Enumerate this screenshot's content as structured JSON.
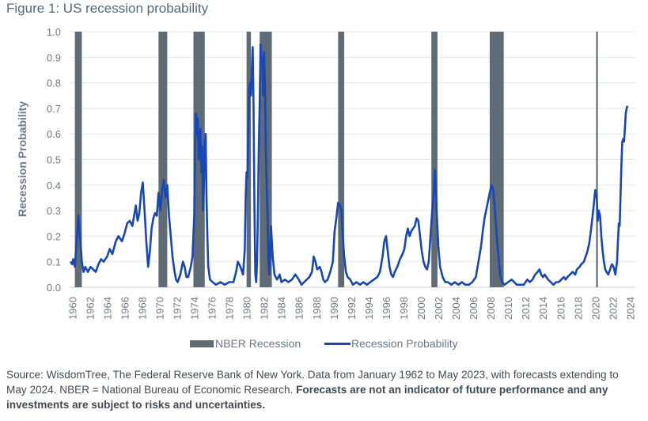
{
  "figure_title": "Figure 1: US recession probability",
  "source": {
    "text": "Source: WisdomTree, The Federal Reserve Bank of New York. Data from January 1962 to May 2023, with forecasts extending to May 2024. NBER = National Bureau of Economic Research.",
    "bold": "Forecasts are not an indicator of future performance and any investments are subject to risks and uncertainties."
  },
  "colors": {
    "recession": "#5f6b75",
    "probability": "#1747b5",
    "grid": "#e3e7ea",
    "axis_text": "#6d7a86"
  },
  "chart_data": {
    "type": "line",
    "title": "",
    "xlabel": "",
    "ylabel": "Recession Probability",
    "xlim": [
      1959.7,
      2024.6
    ],
    "ylim": [
      0,
      1
    ],
    "yticks": [
      "0.0",
      "0.1",
      "0.2",
      "0.3",
      "0.4",
      "0.5",
      "0.6",
      "0.7",
      "0.8",
      "0.9",
      "1.0"
    ],
    "xticks": [
      "1960",
      "1962",
      "1964",
      "1966",
      "1968",
      "1970",
      "1972",
      "1974",
      "1976",
      "1978",
      "1980",
      "1982",
      "1984",
      "1986",
      "1988",
      "1990",
      "1992",
      "1994",
      "1996",
      "1998",
      "2000",
      "2002",
      "2004",
      "2006",
      "2008",
      "2010",
      "2012",
      "2014",
      "2016",
      "2018",
      "2020",
      "2022",
      "2024"
    ],
    "legend": [
      "NBER Recession",
      "Recession Probability"
    ],
    "legend_position": "bottom",
    "grid": true,
    "recessions": [
      {
        "start": 1960.3,
        "end": 1961.1
      },
      {
        "start": 1969.9,
        "end": 1970.9
      },
      {
        "start": 1973.9,
        "end": 1975.2
      },
      {
        "start": 1980.0,
        "end": 1980.5
      },
      {
        "start": 1981.5,
        "end": 1982.9
      },
      {
        "start": 1990.5,
        "end": 1991.2
      },
      {
        "start": 2001.2,
        "end": 2001.9
      },
      {
        "start": 2007.9,
        "end": 2009.5
      },
      {
        "start": 2020.1,
        "end": 2020.3
      }
    ],
    "series": [
      {
        "name": "Recession Probability",
        "points": [
          [
            1959.8,
            0.1
          ],
          [
            1960.0,
            0.09
          ],
          [
            1960.1,
            0.11
          ],
          [
            1960.3,
            0.08
          ],
          [
            1960.5,
            0.18
          ],
          [
            1960.7,
            0.28
          ],
          [
            1960.9,
            0.2
          ],
          [
            1961.1,
            0.1
          ],
          [
            1961.3,
            0.06
          ],
          [
            1961.5,
            0.08
          ],
          [
            1961.8,
            0.06
          ],
          [
            1962.1,
            0.08
          ],
          [
            1962.4,
            0.07
          ],
          [
            1962.7,
            0.06
          ],
          [
            1963.0,
            0.09
          ],
          [
            1963.3,
            0.11
          ],
          [
            1963.6,
            0.1
          ],
          [
            1964.0,
            0.12
          ],
          [
            1964.3,
            0.15
          ],
          [
            1964.6,
            0.13
          ],
          [
            1965.0,
            0.18
          ],
          [
            1965.3,
            0.2
          ],
          [
            1965.7,
            0.18
          ],
          [
            1966.0,
            0.21
          ],
          [
            1966.3,
            0.25
          ],
          [
            1966.6,
            0.26
          ],
          [
            1966.9,
            0.24
          ],
          [
            1967.1,
            0.28
          ],
          [
            1967.3,
            0.32
          ],
          [
            1967.5,
            0.26
          ],
          [
            1967.7,
            0.29
          ],
          [
            1967.9,
            0.37
          ],
          [
            1968.1,
            0.41
          ],
          [
            1968.3,
            0.3
          ],
          [
            1968.5,
            0.18
          ],
          [
            1968.7,
            0.08
          ],
          [
            1968.9,
            0.14
          ],
          [
            1969.1,
            0.23
          ],
          [
            1969.3,
            0.27
          ],
          [
            1969.5,
            0.29
          ],
          [
            1969.7,
            0.28
          ],
          [
            1969.9,
            0.37
          ],
          [
            1970.1,
            0.3
          ],
          [
            1970.3,
            0.38
          ],
          [
            1970.5,
            0.42
          ],
          [
            1970.7,
            0.35
          ],
          [
            1970.9,
            0.4
          ],
          [
            1971.1,
            0.28
          ],
          [
            1971.3,
            0.2
          ],
          [
            1971.5,
            0.12
          ],
          [
            1971.7,
            0.07
          ],
          [
            1971.9,
            0.03
          ],
          [
            1972.1,
            0.02
          ],
          [
            1972.4,
            0.05
          ],
          [
            1972.7,
            0.1
          ],
          [
            1972.9,
            0.08
          ],
          [
            1973.1,
            0.04
          ],
          [
            1973.3,
            0.04
          ],
          [
            1973.6,
            0.08
          ],
          [
            1973.8,
            0.12
          ],
          [
            1974.0,
            0.28
          ],
          [
            1974.1,
            0.55
          ],
          [
            1974.2,
            0.68
          ],
          [
            1974.3,
            0.6
          ],
          [
            1974.4,
            0.66
          ],
          [
            1974.5,
            0.5
          ],
          [
            1974.6,
            0.58
          ],
          [
            1974.7,
            0.62
          ],
          [
            1974.8,
            0.45
          ],
          [
            1974.9,
            0.55
          ],
          [
            1975.0,
            0.3
          ],
          [
            1975.1,
            0.4
          ],
          [
            1975.2,
            0.56
          ],
          [
            1975.3,
            0.6
          ],
          [
            1975.4,
            0.35
          ],
          [
            1975.5,
            0.2
          ],
          [
            1975.6,
            0.08
          ],
          [
            1975.8,
            0.03
          ],
          [
            1976.1,
            0.02
          ],
          [
            1976.5,
            0.01
          ],
          [
            1977.0,
            0.02
          ],
          [
            1977.5,
            0.01
          ],
          [
            1978.0,
            0.02
          ],
          [
            1978.5,
            0.02
          ],
          [
            1978.8,
            0.06
          ],
          [
            1979.0,
            0.1
          ],
          [
            1979.3,
            0.08
          ],
          [
            1979.6,
            0.05
          ],
          [
            1979.8,
            0.15
          ],
          [
            1979.9,
            0.35
          ],
          [
            1980.0,
            0.45
          ],
          [
            1980.1,
            0.43
          ],
          [
            1980.2,
            0.6
          ],
          [
            1980.3,
            0.78
          ],
          [
            1980.4,
            0.8
          ],
          [
            1980.5,
            0.75
          ],
          [
            1980.6,
            0.85
          ],
          [
            1980.7,
            0.94
          ],
          [
            1980.8,
            0.7
          ],
          [
            1980.9,
            0.3
          ],
          [
            1981.0,
            0.05
          ],
          [
            1981.1,
            0.02
          ],
          [
            1981.2,
            0.1
          ],
          [
            1981.3,
            0.3
          ],
          [
            1981.4,
            0.55
          ],
          [
            1981.5,
            0.72
          ],
          [
            1981.6,
            0.95
          ],
          [
            1981.7,
            0.88
          ],
          [
            1981.8,
            0.9
          ],
          [
            1981.9,
            0.75
          ],
          [
            1982.0,
            0.92
          ],
          [
            1982.1,
            0.8
          ],
          [
            1982.2,
            0.55
          ],
          [
            1982.3,
            0.4
          ],
          [
            1982.4,
            0.28
          ],
          [
            1982.5,
            0.1
          ],
          [
            1982.6,
            0.05
          ],
          [
            1982.8,
            0.24
          ],
          [
            1983.0,
            0.12
          ],
          [
            1983.2,
            0.05
          ],
          [
            1983.5,
            0.03
          ],
          [
            1983.8,
            0.05
          ],
          [
            1984.0,
            0.02
          ],
          [
            1984.4,
            0.03
          ],
          [
            1984.8,
            0.02
          ],
          [
            1985.2,
            0.03
          ],
          [
            1985.6,
            0.05
          ],
          [
            1986.0,
            0.03
          ],
          [
            1986.3,
            0.01
          ],
          [
            1986.6,
            0.02
          ],
          [
            1986.9,
            0.03
          ],
          [
            1987.2,
            0.04
          ],
          [
            1987.5,
            0.06
          ],
          [
            1987.7,
            0.12
          ],
          [
            1987.9,
            0.1
          ],
          [
            1988.1,
            0.07
          ],
          [
            1988.4,
            0.08
          ],
          [
            1988.6,
            0.06
          ],
          [
            1988.8,
            0.03
          ],
          [
            1989.0,
            0.02
          ],
          [
            1989.3,
            0.03
          ],
          [
            1989.6,
            0.06
          ],
          [
            1989.9,
            0.1
          ],
          [
            1990.1,
            0.22
          ],
          [
            1990.3,
            0.27
          ],
          [
            1990.5,
            0.33
          ],
          [
            1990.7,
            0.32
          ],
          [
            1990.9,
            0.3
          ],
          [
            1991.0,
            0.22
          ],
          [
            1991.2,
            0.12
          ],
          [
            1991.4,
            0.06
          ],
          [
            1991.6,
            0.04
          ],
          [
            1991.9,
            0.03
          ],
          [
            1992.2,
            0.01
          ],
          [
            1992.6,
            0.02
          ],
          [
            1993.0,
            0.01
          ],
          [
            1993.4,
            0.02
          ],
          [
            1993.8,
            0.01
          ],
          [
            1994.2,
            0.02
          ],
          [
            1994.6,
            0.03
          ],
          [
            1995.0,
            0.04
          ],
          [
            1995.3,
            0.06
          ],
          [
            1995.6,
            0.12
          ],
          [
            1995.8,
            0.18
          ],
          [
            1996.0,
            0.2
          ],
          [
            1996.2,
            0.14
          ],
          [
            1996.4,
            0.08
          ],
          [
            1996.6,
            0.05
          ],
          [
            1996.8,
            0.04
          ],
          [
            1997.0,
            0.06
          ],
          [
            1997.3,
            0.08
          ],
          [
            1997.6,
            0.11
          ],
          [
            1997.9,
            0.13
          ],
          [
            1998.1,
            0.15
          ],
          [
            1998.3,
            0.2
          ],
          [
            1998.5,
            0.23
          ],
          [
            1998.7,
            0.2
          ],
          [
            1998.9,
            0.22
          ],
          [
            1999.1,
            0.23
          ],
          [
            1999.3,
            0.24
          ],
          [
            1999.5,
            0.27
          ],
          [
            1999.7,
            0.26
          ],
          [
            1999.9,
            0.2
          ],
          [
            2000.1,
            0.14
          ],
          [
            2000.3,
            0.1
          ],
          [
            2000.5,
            0.08
          ],
          [
            2000.7,
            0.07
          ],
          [
            2000.9,
            0.1
          ],
          [
            2001.1,
            0.2
          ],
          [
            2001.3,
            0.3
          ],
          [
            2001.5,
            0.38
          ],
          [
            2001.6,
            0.46
          ],
          [
            2001.7,
            0.4
          ],
          [
            2001.8,
            0.3
          ],
          [
            2002.0,
            0.16
          ],
          [
            2002.2,
            0.08
          ],
          [
            2002.5,
            0.04
          ],
          [
            2002.8,
            0.02
          ],
          [
            2003.1,
            0.02
          ],
          [
            2003.5,
            0.01
          ],
          [
            2003.9,
            0.02
          ],
          [
            2004.3,
            0.01
          ],
          [
            2004.7,
            0.02
          ],
          [
            2005.1,
            0.01
          ],
          [
            2005.5,
            0.01
          ],
          [
            2005.9,
            0.02
          ],
          [
            2006.3,
            0.04
          ],
          [
            2006.6,
            0.1
          ],
          [
            2006.9,
            0.16
          ],
          [
            2007.1,
            0.22
          ],
          [
            2007.3,
            0.27
          ],
          [
            2007.6,
            0.32
          ],
          [
            2007.9,
            0.37
          ],
          [
            2008.1,
            0.4
          ],
          [
            2008.3,
            0.38
          ],
          [
            2008.5,
            0.3
          ],
          [
            2008.7,
            0.2
          ],
          [
            2008.9,
            0.12
          ],
          [
            2009.1,
            0.05
          ],
          [
            2009.3,
            0.02
          ],
          [
            2009.6,
            0.01
          ],
          [
            2010.0,
            0.02
          ],
          [
            2010.4,
            0.03
          ],
          [
            2010.7,
            0.02
          ],
          [
            2011.0,
            0.01
          ],
          [
            2011.4,
            0.01
          ],
          [
            2011.8,
            0.01
          ],
          [
            2012.2,
            0.03
          ],
          [
            2012.5,
            0.02
          ],
          [
            2012.8,
            0.03
          ],
          [
            2013.1,
            0.05
          ],
          [
            2013.4,
            0.06
          ],
          [
            2013.6,
            0.07
          ],
          [
            2013.8,
            0.05
          ],
          [
            2014.0,
            0.04
          ],
          [
            2014.2,
            0.05
          ],
          [
            2014.4,
            0.04
          ],
          [
            2014.6,
            0.03
          ],
          [
            2014.9,
            0.02
          ],
          [
            2015.2,
            0.01
          ],
          [
            2015.5,
            0.02
          ],
          [
            2015.8,
            0.02
          ],
          [
            2016.1,
            0.03
          ],
          [
            2016.4,
            0.04
          ],
          [
            2016.6,
            0.03
          ],
          [
            2016.8,
            0.04
          ],
          [
            2017.1,
            0.05
          ],
          [
            2017.4,
            0.06
          ],
          [
            2017.7,
            0.05
          ],
          [
            2017.9,
            0.07
          ],
          [
            2018.2,
            0.08
          ],
          [
            2018.4,
            0.09
          ],
          [
            2018.7,
            0.1
          ],
          [
            2018.9,
            0.12
          ],
          [
            2019.1,
            0.14
          ],
          [
            2019.3,
            0.17
          ],
          [
            2019.5,
            0.22
          ],
          [
            2019.7,
            0.28
          ],
          [
            2019.85,
            0.33
          ],
          [
            2020.0,
            0.38
          ],
          [
            2020.15,
            0.36
          ],
          [
            2020.3,
            0.26
          ],
          [
            2020.4,
            0.3
          ],
          [
            2020.55,
            0.28
          ],
          [
            2020.7,
            0.2
          ],
          [
            2020.85,
            0.14
          ],
          [
            2021.0,
            0.1
          ],
          [
            2021.15,
            0.07
          ],
          [
            2021.3,
            0.06
          ],
          [
            2021.5,
            0.05
          ],
          [
            2021.7,
            0.07
          ],
          [
            2021.9,
            0.09
          ],
          [
            2022.1,
            0.08
          ],
          [
            2022.3,
            0.05
          ],
          [
            2022.5,
            0.1
          ],
          [
            2022.6,
            0.18
          ],
          [
            2022.7,
            0.25
          ],
          [
            2022.8,
            0.24
          ],
          [
            2022.9,
            0.36
          ],
          [
            2023.0,
            0.48
          ],
          [
            2023.1,
            0.57
          ],
          [
            2023.2,
            0.58
          ],
          [
            2023.3,
            0.57
          ],
          [
            2023.4,
            0.62
          ],
          [
            2023.5,
            0.68
          ],
          [
            2023.6,
            0.7
          ],
          [
            2023.7,
            0.71
          ]
        ]
      }
    ]
  }
}
